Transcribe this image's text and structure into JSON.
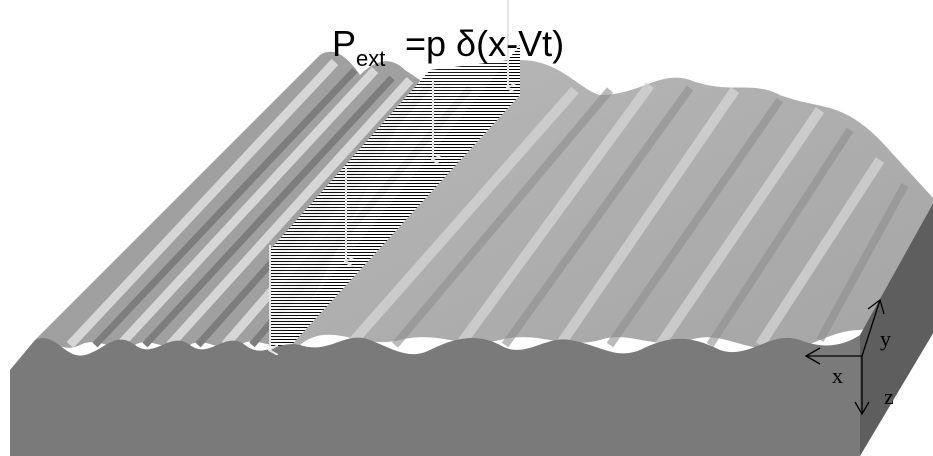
{
  "formula": {
    "symbol": "P",
    "subscript": "ext",
    "rhs": "=p δ(x-Vt)"
  },
  "axes": {
    "x_label": "x",
    "y_label": "y",
    "z_label": "z"
  },
  "colors": {
    "front_face": "#787878",
    "right_face": "#6a6a6a",
    "surface_light": "#bdbdbd",
    "surface_dark": "#8f8f8f",
    "hatch": "#000000",
    "arrow": "#e6e6e6"
  }
}
